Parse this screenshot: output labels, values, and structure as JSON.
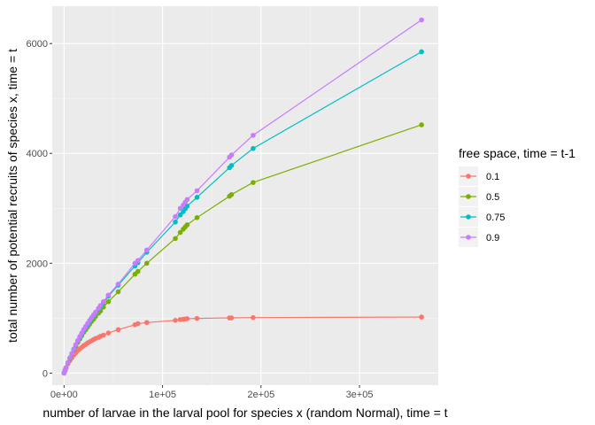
{
  "chart_data": {
    "type": "line",
    "title": "",
    "xlabel": "number of larvae in the larval pool for species x (random Normal), time = t",
    "ylabel": "total number of potential recruits of species x, time = t",
    "xlim": [
      -12000,
      380000
    ],
    "ylim": [
      -220,
      6680
    ],
    "x_ticks": [
      0,
      100000,
      200000,
      300000
    ],
    "x_tick_labels": [
      "0e+00",
      "1e+05",
      "2e+05",
      "3e+05"
    ],
    "y_ticks": [
      0,
      2000,
      4000,
      6000
    ],
    "y_tick_labels": [
      "0",
      "2000",
      "4000",
      "6000"
    ],
    "grid": true,
    "legend": {
      "title": "free space, time = t-1",
      "placement": "right"
    },
    "x": [
      0,
      1000,
      2000,
      4000,
      6000,
      8000,
      10000,
      12000,
      14000,
      16000,
      18000,
      20000,
      22000,
      24000,
      26000,
      28000,
      30000,
      32000,
      35000,
      37000,
      40000,
      45000,
      55000,
      72000,
      75000,
      84000,
      113000,
      118000,
      121000,
      123000,
      125000,
      135000,
      168000,
      170000,
      192000,
      363000
    ],
    "series": [
      {
        "name": "0.1",
        "color": "#F8766D",
        "values": [
          0,
          55,
          100,
          170,
          230,
          280,
          330,
          370,
          410,
          440,
          470,
          500,
          520,
          550,
          570,
          590,
          610,
          630,
          650,
          670,
          690,
          730,
          790,
          880,
          900,
          920,
          960,
          975,
          980,
          985,
          990,
          995,
          1005,
          1005,
          1010,
          1020
        ]
      },
      {
        "name": "0.5",
        "color": "#7CAE00",
        "values": [
          0,
          45,
          95,
          185,
          265,
          345,
          420,
          490,
          560,
          620,
          680,
          740,
          790,
          840,
          890,
          940,
          980,
          1030,
          1090,
          1130,
          1200,
          1300,
          1480,
          1800,
          1850,
          2000,
          2450,
          2560,
          2620,
          2660,
          2700,
          2830,
          3220,
          3250,
          3470,
          4520
        ]
      },
      {
        "name": "0.75",
        "color": "#00BFC4",
        "values": [
          0,
          45,
          95,
          190,
          275,
          355,
          435,
          510,
          585,
          650,
          715,
          780,
          830,
          885,
          940,
          990,
          1040,
          1090,
          1160,
          1210,
          1280,
          1400,
          1600,
          1950,
          2010,
          2200,
          2750,
          2880,
          2940,
          2990,
          3040,
          3200,
          3740,
          3780,
          4090,
          5850
        ]
      },
      {
        "name": "0.9",
        "color": "#C77CFF",
        "values": [
          0,
          45,
          95,
          190,
          280,
          360,
          440,
          520,
          595,
          665,
          730,
          795,
          850,
          905,
          960,
          1010,
          1060,
          1110,
          1180,
          1230,
          1300,
          1420,
          1620,
          2000,
          2050,
          2240,
          2850,
          3000,
          3060,
          3110,
          3160,
          3320,
          3930,
          3970,
          4330,
          6430
        ]
      }
    ]
  }
}
